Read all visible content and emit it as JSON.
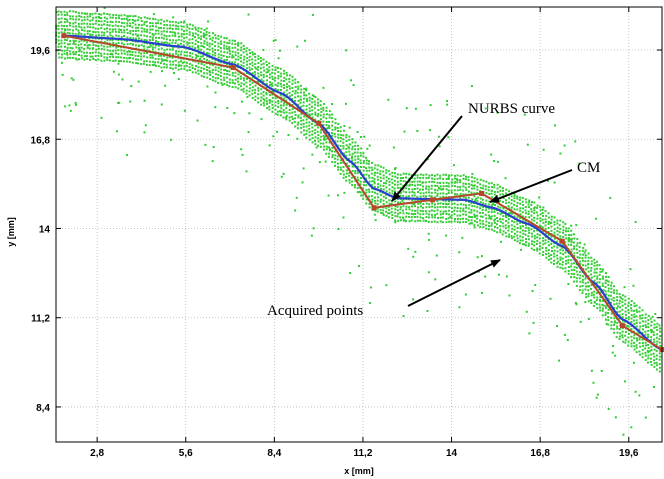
{
  "chart_data": {
    "type": "line",
    "xlabel": "x [mm]",
    "ylabel": "y [mm]",
    "xlim": [
      1.5,
      20.65
    ],
    "ylim": [
      7.3,
      20.95
    ],
    "x_ticks": [
      "2,8",
      "5,6",
      "8,4",
      "11,2",
      "14",
      "16,8",
      "19,6"
    ],
    "y_ticks": [
      "19,6",
      "16,8",
      "14",
      "11,2",
      "8,4"
    ],
    "grid": true,
    "series": [
      {
        "name": "CM",
        "color": "#b5482a",
        "x": [
          1.75,
          7.1,
          9.8,
          11.55,
          13.4,
          14.95,
          17.5,
          19.4,
          20.65
        ],
        "y": [
          20.05,
          19.05,
          17.3,
          14.65,
          14.9,
          15.1,
          13.6,
          10.95,
          10.2
        ]
      },
      {
        "name": "NURBS curve",
        "color": "#2a3fd0",
        "x": [
          1.75,
          3.5,
          5.5,
          7.1,
          8.6,
          9.8,
          10.8,
          11.55,
          12.3,
          13.4,
          14.4,
          15.3,
          16.4,
          17.5,
          18.5,
          19.4,
          20.65
        ],
        "y": [
          20.05,
          19.95,
          19.7,
          19.15,
          18.25,
          17.3,
          16.1,
          15.25,
          14.95,
          14.92,
          14.9,
          14.65,
          14.15,
          13.45,
          12.3,
          11.15,
          10.2
        ]
      },
      {
        "name": "Acquired points",
        "color": "#33cc33",
        "band_offsets": [
          -0.7,
          0.75
        ],
        "band_rows": 14,
        "scatter_count": 420
      }
    ],
    "annotations": [
      {
        "text": "NURBS curve",
        "target": [
          11.9,
          15.1
        ]
      },
      {
        "text": "CM",
        "target": [
          15.2,
          15.0
        ]
      },
      {
        "text": "Acquired points",
        "target": [
          15.6,
          13.1
        ]
      }
    ]
  }
}
